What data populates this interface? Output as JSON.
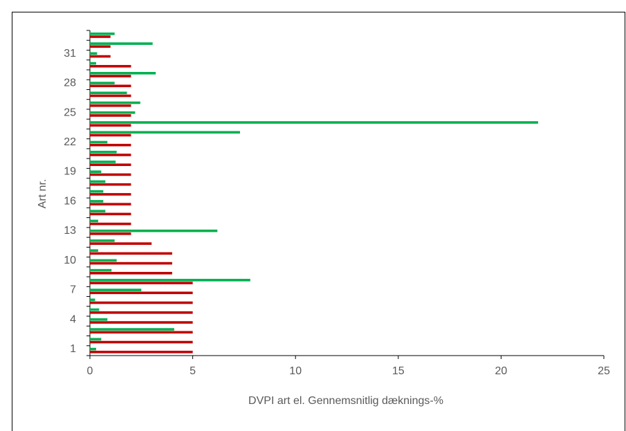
{
  "chart_data": {
    "type": "bar",
    "orientation": "horizontal",
    "x_label": "DVPI art el. Gennemsnitlig dæknings-%",
    "y_label": "Art nr.",
    "categories": [
      "1",
      null,
      null,
      "4",
      null,
      null,
      "7",
      null,
      null,
      "10",
      null,
      null,
      "13",
      null,
      null,
      "16",
      null,
      null,
      "19",
      null,
      null,
      "22",
      null,
      null,
      "25",
      null,
      null,
      "28",
      null,
      null,
      "31",
      null,
      null
    ],
    "series": [
      {
        "color": "#c00000",
        "values": [
          5,
          5,
          5,
          5,
          5,
          5,
          5,
          5,
          4,
          4,
          4,
          3,
          2,
          2,
          2,
          2,
          2,
          2,
          2,
          2,
          2,
          2,
          2,
          2,
          2,
          2,
          2,
          2,
          2,
          2,
          1,
          1,
          1
        ]
      },
      {
        "color": "#00b050",
        "values": [
          0.3,
          0.55,
          4.1,
          0.85,
          0.45,
          0.25,
          2.5,
          7.8,
          1.05,
          1.3,
          0.4,
          1.2,
          6.2,
          0.4,
          0.75,
          0.65,
          0.65,
          0.75,
          0.55,
          1.25,
          1.3,
          0.85,
          7.3,
          21.8,
          2.2,
          2.45,
          1.8,
          1.2,
          3.2,
          0.3,
          0.35,
          3.05,
          1.2
        ]
      }
    ],
    "xlim": [
      0,
      25
    ],
    "xticks": [
      0,
      5,
      10,
      15,
      20,
      25
    ],
    "grid": false
  }
}
